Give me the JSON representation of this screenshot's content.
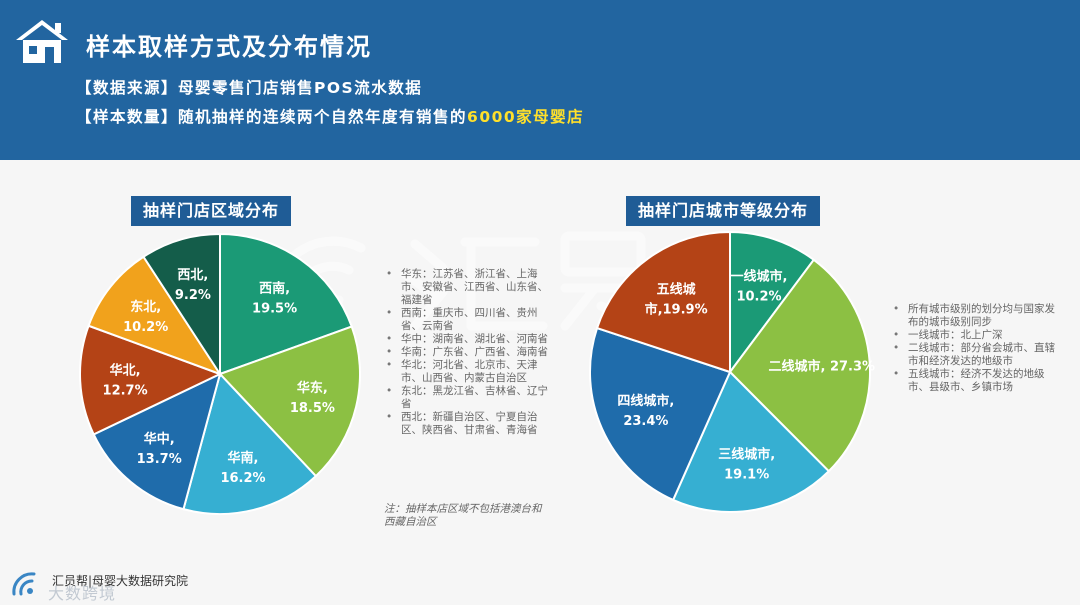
{
  "header": {
    "title": "样本取样方式及分布情况",
    "source_label": "【数据来源】",
    "source_text": "母婴零售门店销售POS流水数据",
    "size_label": "【样本数量】",
    "size_text_prefix": "随机抽样的连续两个自然年度有销售的",
    "size_highlight": "6000家母婴店",
    "icon": "house-icon"
  },
  "colors": {
    "header_bg": "#2265a0",
    "title_badge_bg": "#1f5c96",
    "highlight": "#ffe02b",
    "page_bg": "#f6f6f6"
  },
  "chart_data": [
    {
      "type": "pie",
      "title": "抽样门店区域分布",
      "slices": [
        {
          "label": "西南",
          "text": "西南,",
          "pct_text": "19.5%",
          "value": 19.5,
          "color": "#1b9a76"
        },
        {
          "label": "华东",
          "text": "华东,",
          "pct_text": "18.5%",
          "value": 18.5,
          "color": "#8cc043"
        },
        {
          "label": "华南",
          "text": "华南,",
          "pct_text": "16.2%",
          "value": 16.2,
          "color": "#36afd2"
        },
        {
          "label": "华中",
          "text": "华中,",
          "pct_text": "13.7%",
          "value": 13.7,
          "color": "#1f6cab"
        },
        {
          "label": "华北",
          "text": "华北,",
          "pct_text": "12.7%",
          "value": 12.7,
          "color": "#b44316"
        },
        {
          "label": "东北",
          "text": "东北,",
          "pct_text": "10.2%",
          "value": 10.2,
          "color": "#f1a21c"
        },
        {
          "label": "西北",
          "text": "西北,",
          "pct_text": "9.2%",
          "value": 9.2,
          "color": "#145d4a"
        }
      ],
      "notes": [
        "华东：江苏省、浙江省、上海市、安徽省、江西省、山东省、福建省",
        "西南：重庆市、四川省、贵州省、云南省",
        "华中：湖南省、湖北省、河南省",
        "华南：广东省、广西省、海南省",
        "华北：河北省、北京市、天津市、山西省、内蒙古自治区",
        "东北：黑龙江省、吉林省、辽宁省",
        "西北：新疆自治区、宁夏自治区、陕西省、甘肃省、青海省"
      ],
      "footnote": "注：抽样本店区域不包括港澳台和西藏自治区"
    },
    {
      "type": "pie",
      "title": "抽样门店城市等级分布",
      "slices": [
        {
          "label": "一线城市",
          "text": "一线城市,",
          "pct_text": "10.2%",
          "value": 10.2,
          "color": "#1b9a76"
        },
        {
          "label": "二线城市",
          "text": "二线城市, 27.3%",
          "pct_text": "",
          "value": 27.3,
          "color": "#8cc043"
        },
        {
          "label": "三线城市",
          "text": "三线城市,",
          "pct_text": "19.1%",
          "value": 19.1,
          "color": "#36afd2"
        },
        {
          "label": "四线城市",
          "text": "四线城市,",
          "pct_text": "23.4%",
          "value": 23.4,
          "color": "#1f6cab"
        },
        {
          "label": "五线城市",
          "text": "五线城",
          "pct_text": "市,19.9%",
          "value": 19.9,
          "color": "#b44316"
        }
      ],
      "notes": [
        "所有城市级别的划分均与国家发布的城市级别同步",
        "一线城市：北上广深",
        "二线城市：部分省会城市、直辖市和经济发达的地级市",
        "五线城市：经济不发达的地级市、县级市、乡镇市场"
      ]
    }
  ],
  "footer": {
    "org": "汇员帮|母婴大数据研究院",
    "watermark": "大数跨境",
    "logo": "huiyuan-logo-icon"
  }
}
